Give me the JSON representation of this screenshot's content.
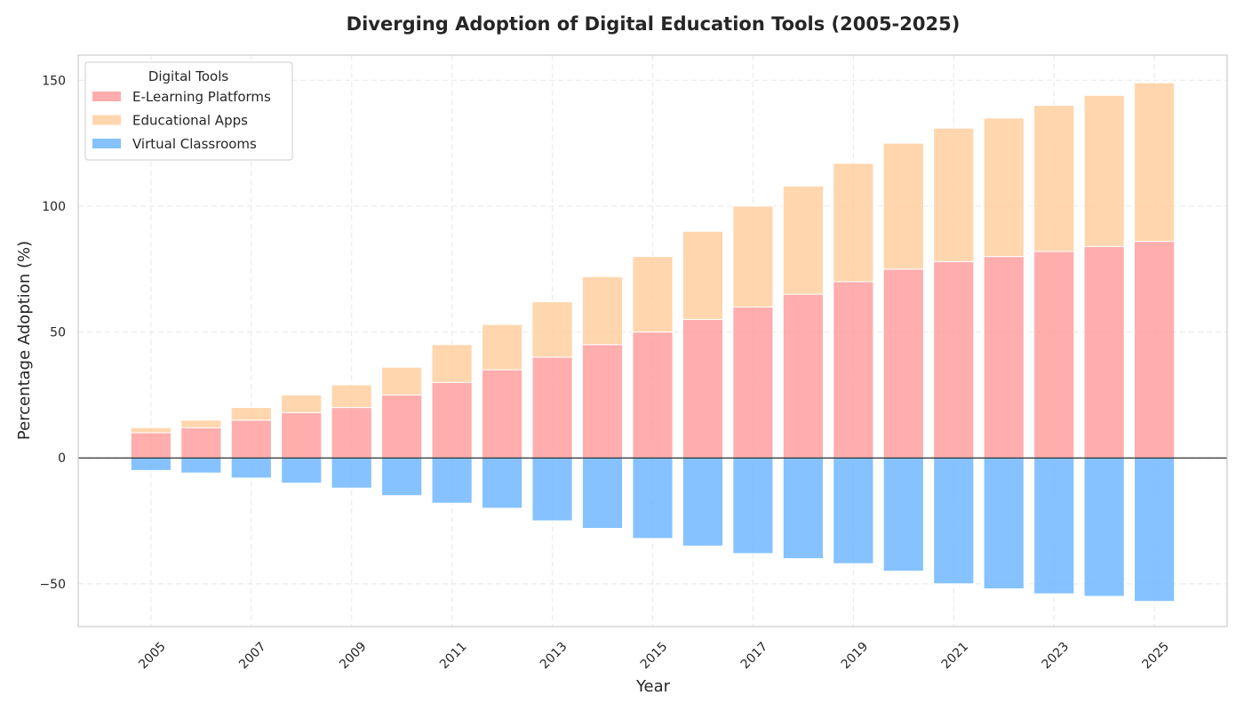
{
  "chart_data": {
    "type": "bar",
    "stacked": true,
    "diverging": true,
    "title": "Diverging Adoption of Digital Education Tools (2005-2025)",
    "xlabel": "Year",
    "ylabel": "Percentage Adoption (%)",
    "ylim": [
      -67,
      160
    ],
    "xlim": [
      2003.55,
      2026.45
    ],
    "yticks": [
      -50,
      0,
      50,
      100,
      150
    ],
    "xticks": [
      2005,
      2007,
      2009,
      2011,
      2013,
      2015,
      2017,
      2019,
      2021,
      2023,
      2025
    ],
    "grid": true,
    "legend": {
      "title": "Digital Tools",
      "position": "top-left"
    },
    "categories": [
      2005,
      2006,
      2007,
      2008,
      2009,
      2010,
      2011,
      2012,
      2013,
      2014,
      2015,
      2016,
      2017,
      2018,
      2019,
      2020,
      2021,
      2022,
      2023,
      2024,
      2025
    ],
    "series": [
      {
        "name": "E-Learning Platforms",
        "color": "#ff9999",
        "stack": "positive",
        "values": [
          10,
          12,
          15,
          18,
          20,
          25,
          30,
          35,
          40,
          45,
          50,
          55,
          60,
          65,
          70,
          75,
          78,
          80,
          82,
          84,
          86
        ]
      },
      {
        "name": "Educational Apps",
        "color": "#ffcc99",
        "stack": "positive",
        "values": [
          2,
          3,
          5,
          7,
          9,
          11,
          15,
          18,
          22,
          27,
          30,
          35,
          40,
          43,
          47,
          50,
          53,
          55,
          58,
          60,
          63
        ]
      },
      {
        "name": "Virtual Classrooms",
        "color": "#66b3ff",
        "stack": "negative",
        "values": [
          -5,
          -6,
          -8,
          -10,
          -12,
          -15,
          -18,
          -20,
          -25,
          -28,
          -32,
          -35,
          -38,
          -40,
          -42,
          -45,
          -50,
          -52,
          -54,
          -55,
          -57
        ]
      }
    ]
  }
}
